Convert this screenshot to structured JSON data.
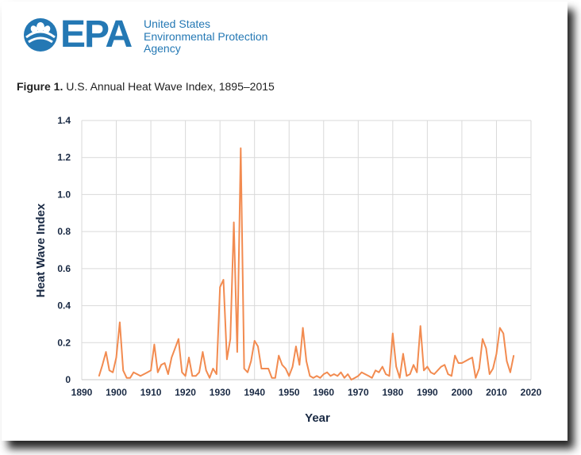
{
  "brand": {
    "logo_text": "EPA",
    "agency_lines": [
      "United States",
      "Environmental Protection",
      "Agency"
    ],
    "color": "#2478b4"
  },
  "figure": {
    "label": "Figure 1.",
    "caption": "U.S. Annual Heat Wave Index, 1895–2015"
  },
  "chart_data": {
    "type": "line",
    "title": "U.S. Annual Heat Wave Index, 1895–2015",
    "xlabel": "Year",
    "ylabel": "Heat Wave Index",
    "xlim": [
      1890,
      2020
    ],
    "ylim": [
      0,
      1.4
    ],
    "xticks": [
      1890,
      1900,
      1910,
      1920,
      1930,
      1940,
      1950,
      1960,
      1970,
      1980,
      1990,
      2000,
      2010,
      2020
    ],
    "yticks": [
      0,
      0.2,
      0.4,
      0.6,
      0.8,
      1.0,
      1.2,
      1.4
    ],
    "ytick_labels": [
      "0",
      "0.2",
      "0.4",
      "0.6",
      "0.8",
      "1.0",
      "1.2",
      "1.4"
    ],
    "grid": true,
    "line_color": "#f28b50",
    "series": [
      {
        "name": "Heat Wave Index",
        "x": [
          1895,
          1896,
          1897,
          1898,
          1899,
          1900,
          1901,
          1902,
          1903,
          1904,
          1905,
          1906,
          1907,
          1908,
          1909,
          1910,
          1911,
          1912,
          1913,
          1914,
          1915,
          1916,
          1917,
          1918,
          1919,
          1920,
          1921,
          1922,
          1923,
          1924,
          1925,
          1926,
          1927,
          1928,
          1929,
          1930,
          1931,
          1932,
          1933,
          1934,
          1935,
          1936,
          1937,
          1938,
          1939,
          1940,
          1941,
          1942,
          1943,
          1944,
          1945,
          1946,
          1947,
          1948,
          1949,
          1950,
          1951,
          1952,
          1953,
          1954,
          1955,
          1956,
          1957,
          1958,
          1959,
          1960,
          1961,
          1962,
          1963,
          1964,
          1965,
          1966,
          1967,
          1968,
          1969,
          1970,
          1971,
          1972,
          1973,
          1974,
          1975,
          1976,
          1977,
          1978,
          1979,
          1980,
          1981,
          1982,
          1983,
          1984,
          1985,
          1986,
          1987,
          1988,
          1989,
          1990,
          1991,
          1992,
          1993,
          1994,
          1995,
          1996,
          1997,
          1998,
          1999,
          2000,
          2001,
          2002,
          2003,
          2004,
          2005,
          2006,
          2007,
          2008,
          2009,
          2010,
          2011,
          2012,
          2013,
          2014,
          2015
        ],
        "values": [
          0.02,
          0.08,
          0.15,
          0.05,
          0.04,
          0.12,
          0.31,
          0.05,
          0.01,
          0.01,
          0.04,
          0.03,
          0.02,
          0.03,
          0.04,
          0.05,
          0.19,
          0.04,
          0.08,
          0.09,
          0.03,
          0.12,
          0.17,
          0.22,
          0.04,
          0.02,
          0.12,
          0.02,
          0.02,
          0.04,
          0.15,
          0.05,
          0.01,
          0.06,
          0.03,
          0.5,
          0.54,
          0.11,
          0.22,
          0.85,
          0.15,
          1.25,
          0.06,
          0.04,
          0.1,
          0.21,
          0.18,
          0.06,
          0.06,
          0.06,
          0.01,
          0.01,
          0.13,
          0.08,
          0.06,
          0.02,
          0.07,
          0.18,
          0.08,
          0.28,
          0.1,
          0.02,
          0.01,
          0.02,
          0.01,
          0.03,
          0.04,
          0.02,
          0.03,
          0.02,
          0.04,
          0.01,
          0.03,
          0.0,
          0.01,
          0.02,
          0.04,
          0.03,
          0.02,
          0.01,
          0.05,
          0.04,
          0.07,
          0.03,
          0.02,
          0.25,
          0.07,
          0.01,
          0.14,
          0.02,
          0.03,
          0.08,
          0.04,
          0.29,
          0.05,
          0.07,
          0.04,
          0.03,
          0.05,
          0.07,
          0.08,
          0.03,
          0.02,
          0.13,
          0.09,
          0.09,
          0.1,
          0.11,
          0.12,
          0.01,
          0.06,
          0.22,
          0.17,
          0.03,
          0.06,
          0.14,
          0.28,
          0.25,
          0.1,
          0.04,
          0.13
        ]
      }
    ]
  }
}
